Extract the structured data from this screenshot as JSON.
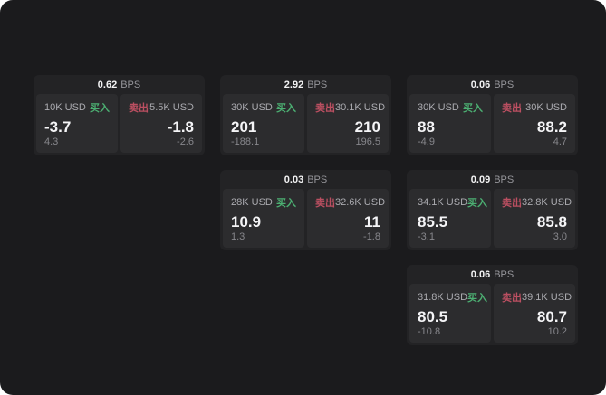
{
  "page": {
    "background": "#1b1b1d",
    "card_background": "#232325",
    "panel_background": "#2c2c2e"
  },
  "labels": {
    "bps_unit": "BPS",
    "buy": "买入",
    "sell": "卖出"
  },
  "colors": {
    "buy": "#4caf72",
    "sell": "#bb4f61"
  },
  "cards": [
    {
      "bps": "0.62",
      "buy": {
        "amount": "10K USD",
        "price": "-3.7",
        "change": "4.3"
      },
      "sell": {
        "amount": "5.5K USD",
        "price": "-1.8",
        "change": "-2.6"
      }
    },
    {
      "bps": "2.92",
      "buy": {
        "amount": "30K USD",
        "price": "201",
        "change": "-188.1"
      },
      "sell": {
        "amount": "30.1K USD",
        "price": "210",
        "change": "196.5"
      }
    },
    {
      "bps": "0.06",
      "buy": {
        "amount": "30K USD",
        "price": "88",
        "change": "-4.9"
      },
      "sell": {
        "amount": "30K USD",
        "price": "88.2",
        "change": "4.7"
      }
    },
    {
      "bps": "0.03",
      "buy": {
        "amount": "28K USD",
        "price": "10.9",
        "change": "1.3"
      },
      "sell": {
        "amount": "32.6K USD",
        "price": "11",
        "change": "-1.8"
      }
    },
    {
      "bps": "0.09",
      "buy": {
        "amount": "34.1K USD",
        "price": "85.5",
        "change": "-3.1"
      },
      "sell": {
        "amount": "32.8K USD",
        "price": "85.8",
        "change": "3.0"
      }
    },
    {
      "bps": "0.06",
      "buy": {
        "amount": "31.8K USD",
        "price": "80.5",
        "change": "-10.8"
      },
      "sell": {
        "amount": "39.1K USD",
        "price": "80.7",
        "change": "10.2"
      }
    }
  ]
}
